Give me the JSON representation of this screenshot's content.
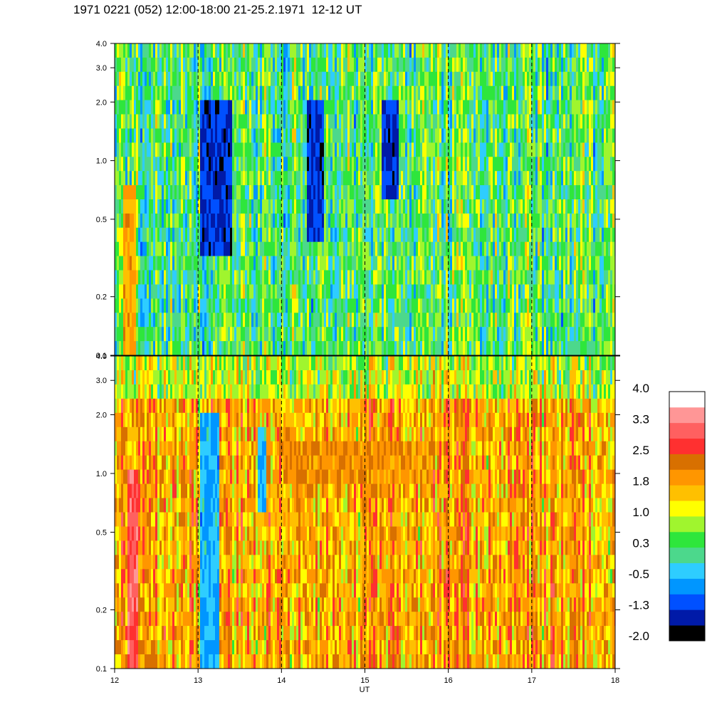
{
  "title": "1971 0221 (052) 12:00-18:00 21-25.2.1971  12-12 UT",
  "chart_data": [
    {
      "type": "heatmap",
      "panel": "upper",
      "xlim": [
        12,
        18
      ],
      "ylim": [
        0.1,
        4.0
      ],
      "y_scale": "log",
      "x_ticks": [
        12,
        13,
        14,
        15,
        16,
        17,
        18
      ],
      "y_tick_labels": [
        "0.1",
        "0.2",
        "0.5",
        "1.0",
        "2.0",
        "3.0",
        "4.0"
      ],
      "y_ticks": [
        0.1,
        0.2,
        0.5,
        1.0,
        2.0,
        3.0,
        4.0
      ],
      "dashed_vlines": [
        13,
        14,
        15,
        16,
        17
      ],
      "dominant_level": 0.3,
      "features": [
        {
          "x_start": 12.1,
          "x_end": 12.25,
          "y_min": 0.1,
          "y_max": 0.8,
          "level": 1.8
        },
        {
          "x_start": 13.0,
          "x_end": 13.4,
          "y_min": 0.3,
          "y_max": 2.0,
          "level": -1.3
        },
        {
          "x_start": 14.3,
          "x_end": 14.5,
          "y_min": 0.4,
          "y_max": 2.0,
          "level": -1.3
        },
        {
          "x_start": 15.2,
          "x_end": 15.4,
          "y_min": 0.6,
          "y_max": 2.0,
          "level": -1.3
        }
      ]
    },
    {
      "type": "heatmap",
      "panel": "lower",
      "xlim": [
        12,
        18
      ],
      "ylim": [
        0.1,
        4.0
      ],
      "y_scale": "log",
      "x_ticks": [
        12,
        13,
        14,
        15,
        16,
        17,
        18
      ],
      "x_tick_labels": [
        "12",
        "13",
        "14",
        "15",
        "16",
        "17",
        "18"
      ],
      "xlabel": "UT",
      "y_tick_labels": [
        "0.1",
        "0.2",
        "0.5",
        "1.0",
        "2.0",
        "3.0",
        "4.0"
      ],
      "y_ticks": [
        0.1,
        0.2,
        0.5,
        1.0,
        2.0,
        3.0,
        4.0
      ],
      "dashed_vlines": [
        13,
        14,
        15,
        16,
        17
      ],
      "dominant_level": 1.8,
      "features": [
        {
          "x_start": 12.15,
          "x_end": 12.28,
          "y_min": 0.1,
          "y_max": 1.0,
          "level": 3.0
        },
        {
          "x_start": 13.0,
          "x_end": 13.25,
          "y_min": 0.1,
          "y_max": 2.0,
          "level": -0.5
        },
        {
          "x_start": 13.7,
          "x_end": 13.8,
          "y_min": 0.6,
          "y_max": 1.8,
          "level": -0.5
        },
        {
          "x_start": 14.0,
          "x_end": 15.8,
          "y_min": 0.95,
          "y_max": 1.35,
          "level": 2.0
        }
      ]
    }
  ],
  "colorbar": {
    "labels": [
      "4.0",
      "3.3",
      "2.5",
      "1.8",
      "1.0",
      "0.3",
      "-0.5",
      "-1.3",
      "-2.0"
    ],
    "min": -2.0,
    "max": 4.0,
    "colors": [
      "#000000",
      "#001aa8",
      "#0050ff",
      "#0096ff",
      "#2ecdff",
      "#4cd88c",
      "#2ee63c",
      "#a0f52e",
      "#ffff00",
      "#ffc000",
      "#ff9600",
      "#d87000",
      "#ff3030",
      "#ff6060",
      "#ff9696",
      "#ffffff"
    ]
  }
}
